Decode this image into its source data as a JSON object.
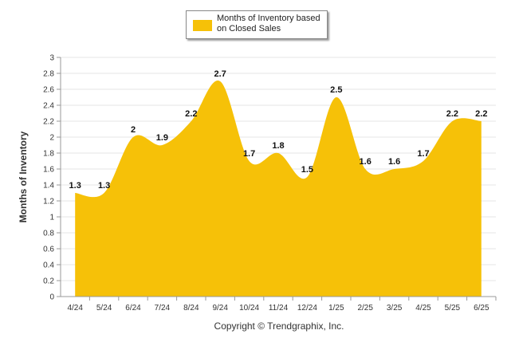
{
  "legend": {
    "label": "Months of Inventory based on Closed Sales"
  },
  "footer": "Copyright © Trendgraphix, Inc.",
  "colors": {
    "area": "#F6C108",
    "grid": "#e6e6e6",
    "axis": "#999999"
  },
  "chart_data": {
    "type": "area",
    "categories": [
      "4/24",
      "5/24",
      "6/24",
      "7/24",
      "8/24",
      "9/24",
      "10/24",
      "11/24",
      "12/24",
      "1/25",
      "2/25",
      "3/25",
      "4/25",
      "5/25",
      "6/25"
    ],
    "series": [
      {
        "name": "Months of Inventory based on Closed Sales",
        "values": [
          1.3,
          1.3,
          2,
          1.9,
          2.2,
          2.7,
          1.7,
          1.8,
          1.5,
          2.5,
          1.6,
          1.6,
          1.7,
          2.2,
          2.2
        ]
      }
    ],
    "data_labels": [
      "1.3",
      "1.3",
      "2",
      "1.9",
      "2.2",
      "2.7",
      "1.7",
      "1.8",
      "1.5",
      "2.5",
      "1.6",
      "1.6",
      "1.7",
      "2.2",
      "2.2"
    ],
    "ylabel": "Months of Inventory",
    "xlabel": "",
    "ylim": [
      0,
      3
    ],
    "yticks": [
      "0",
      "0.2",
      "0.4",
      "0.6",
      "0.8",
      "1",
      "1.2",
      "1.4",
      "1.6",
      "1.8",
      "2",
      "2.2",
      "2.4",
      "2.6",
      "2.8",
      "3"
    ],
    "grid": true,
    "legend_position": "top-center"
  }
}
